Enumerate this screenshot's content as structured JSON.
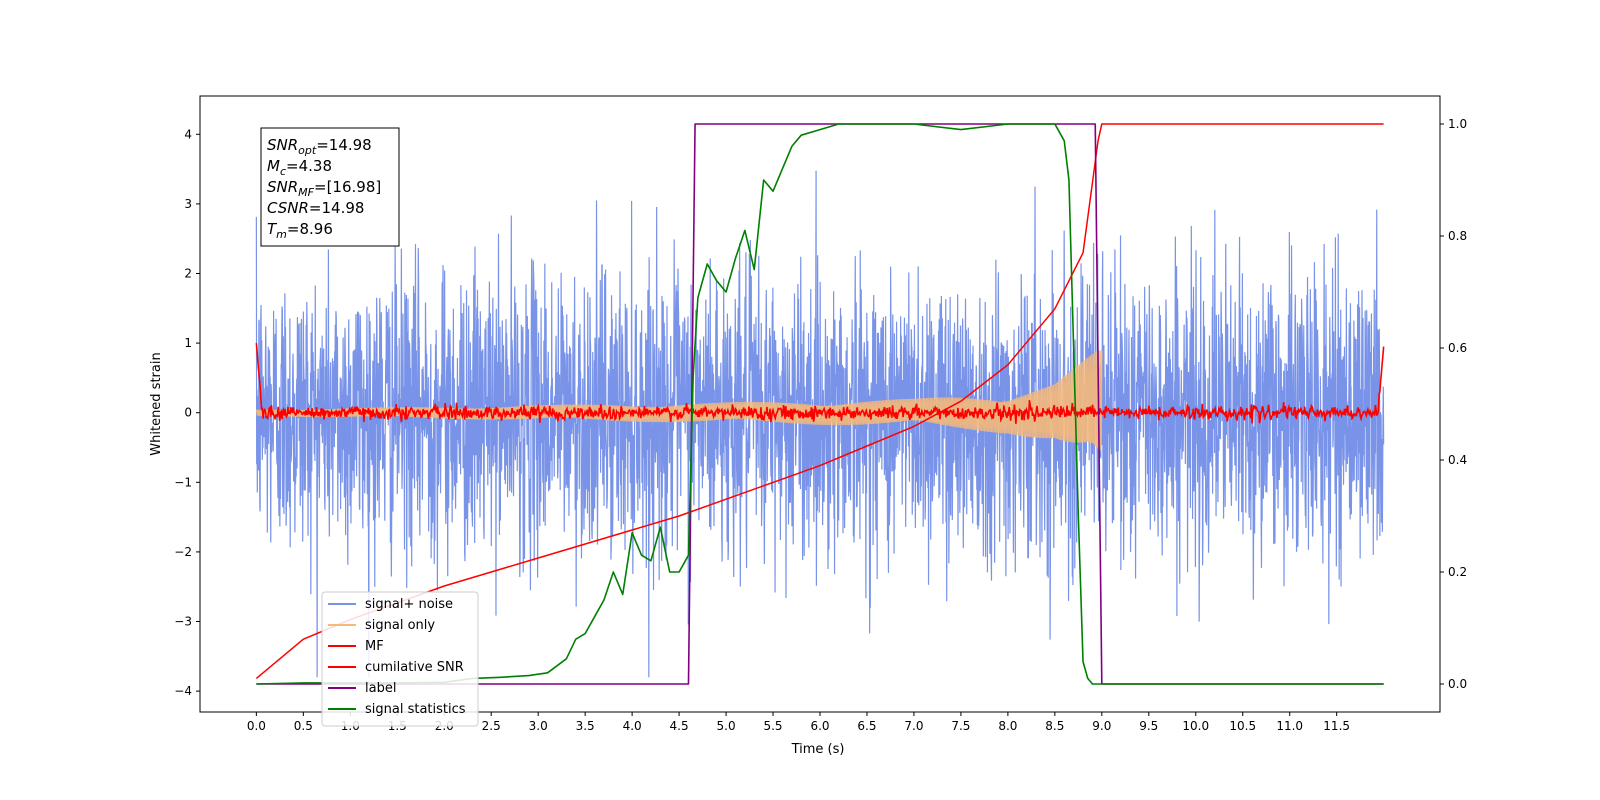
{
  "chart_data": {
    "type": "line",
    "xlabel": "Time (s)",
    "ylabel": "Whitened strain",
    "xlim": [
      -0.6,
      12.6
    ],
    "ylim_left": [
      -4.3,
      4.55
    ],
    "ylim_right": [
      -0.05,
      1.05
    ],
    "x_ticks": [
      0.0,
      0.5,
      1.0,
      1.5,
      2.0,
      2.5,
      3.0,
      3.5,
      4.0,
      4.5,
      5.0,
      5.5,
      6.0,
      6.5,
      7.0,
      7.5,
      8.0,
      8.5,
      9.0,
      9.5,
      10.0,
      10.5,
      11.0,
      11.5
    ],
    "x_tick_labels": [
      "0.0",
      "0.5",
      "1.0",
      "1.5",
      "2.0",
      "2.5",
      "3.0",
      "3.5",
      "4.0",
      "4.5",
      "5.0",
      "5.5",
      "6.0",
      "6.5",
      "7.0",
      "7.5",
      "8.0",
      "8.5",
      "9.0",
      "9.5",
      "10.0",
      "10.5",
      "11.0",
      "11.5"
    ],
    "y_ticks_left": [
      -4,
      -3,
      -2,
      -1,
      0,
      1,
      2,
      3,
      4
    ],
    "y_tick_labels_left": [
      "−4",
      "−3",
      "−2",
      "−1",
      "0",
      "1",
      "2",
      "3",
      "4"
    ],
    "y_ticks_right": [
      0.0,
      0.2,
      0.4,
      0.6,
      0.8,
      1.0
    ],
    "y_tick_labels_right": [
      "0.0",
      "0.2",
      "0.4",
      "0.6",
      "0.8",
      "1.0"
    ],
    "grid": false,
    "legend_placement": "lower-left",
    "annotation": [
      {
        "base": "SNR",
        "sub": "opt",
        "value": "=14.98"
      },
      {
        "base": "M",
        "sub": "c",
        "value": "=4.38"
      },
      {
        "base": "SNR",
        "sub": "MF",
        "value": "=[16.98]"
      },
      {
        "base": "CSNR",
        "sub": "",
        "value": "=14.98"
      },
      {
        "base": "T",
        "sub": "m",
        "value": "=8.96"
      }
    ],
    "series": [
      {
        "name": "signal+ noise",
        "axis": "left",
        "color": "#7893e8",
        "description_values": {
          "x_range": [
            0.0,
            12.0
          ],
          "typical_amplitude": 1.3,
          "peak_range": [
            -3.8,
            3.9
          ]
        }
      },
      {
        "name": "signal only",
        "axis": "left",
        "color": "#f5b97a",
        "description_values": {
          "x_range": [
            0.0,
            9.0
          ],
          "envelope_at_x": [
            [
              0.0,
              0.05
            ],
            [
              5.0,
              0.15
            ],
            [
              7.0,
              0.2
            ],
            [
              8.0,
              0.3
            ],
            [
              8.5,
              0.45
            ],
            [
              8.96,
              0.9
            ]
          ]
        }
      },
      {
        "name": "MF",
        "axis": "left",
        "color": "#ff0000",
        "description_values": {
          "x_range": [
            0.0,
            12.0
          ],
          "start_value": 1.0,
          "baseline": 0.0,
          "noise_amplitude": 0.1,
          "end_value": 0.95
        }
      },
      {
        "name": "cumilative SNR",
        "axis": "right",
        "color": "#ff0000",
        "x": [
          0.0,
          0.5,
          1.0,
          1.5,
          2.0,
          2.5,
          3.0,
          3.5,
          4.0,
          4.5,
          5.0,
          5.5,
          6.0,
          6.5,
          7.0,
          7.5,
          8.0,
          8.5,
          8.8,
          8.96,
          9.0,
          12.0
        ],
        "y": [
          0.01,
          0.08,
          0.115,
          0.145,
          0.175,
          0.2,
          0.225,
          0.25,
          0.275,
          0.3,
          0.33,
          0.36,
          0.39,
          0.425,
          0.46,
          0.505,
          0.57,
          0.67,
          0.77,
          0.97,
          1.0,
          1.0
        ]
      },
      {
        "name": "label",
        "axis": "right",
        "color": "#800080",
        "x": [
          0.0,
          4.6,
          4.67,
          8.93,
          9.0,
          12.0
        ],
        "y": [
          0.0,
          0.0,
          1.0,
          1.0,
          0.0,
          0.0
        ]
      },
      {
        "name": "signal statistics",
        "axis": "right",
        "color": "#008000",
        "x": [
          0.0,
          0.5,
          1.0,
          1.5,
          2.0,
          2.3,
          2.6,
          2.9,
          3.1,
          3.3,
          3.4,
          3.5,
          3.6,
          3.7,
          3.8,
          3.9,
          4.0,
          4.1,
          4.2,
          4.3,
          4.4,
          4.5,
          4.6,
          4.65,
          4.7,
          4.8,
          4.9,
          5.0,
          5.1,
          5.2,
          5.3,
          5.4,
          5.5,
          5.6,
          5.7,
          5.8,
          6.0,
          6.2,
          6.5,
          7.0,
          7.5,
          8.0,
          8.5,
          8.6,
          8.65,
          8.7,
          8.75,
          8.8,
          8.85,
          8.9,
          9.0,
          12.0
        ],
        "y": [
          0.0,
          0.002,
          0.002,
          0.002,
          0.003,
          0.01,
          0.012,
          0.015,
          0.02,
          0.045,
          0.08,
          0.09,
          0.12,
          0.15,
          0.2,
          0.16,
          0.27,
          0.23,
          0.22,
          0.28,
          0.2,
          0.2,
          0.23,
          0.55,
          0.69,
          0.75,
          0.72,
          0.7,
          0.76,
          0.81,
          0.74,
          0.9,
          0.88,
          0.92,
          0.96,
          0.98,
          0.99,
          1.0,
          1.0,
          1.0,
          0.99,
          1.0,
          1.0,
          0.97,
          0.9,
          0.6,
          0.3,
          0.04,
          0.01,
          0.0,
          0.0,
          0.0
        ]
      }
    ]
  }
}
